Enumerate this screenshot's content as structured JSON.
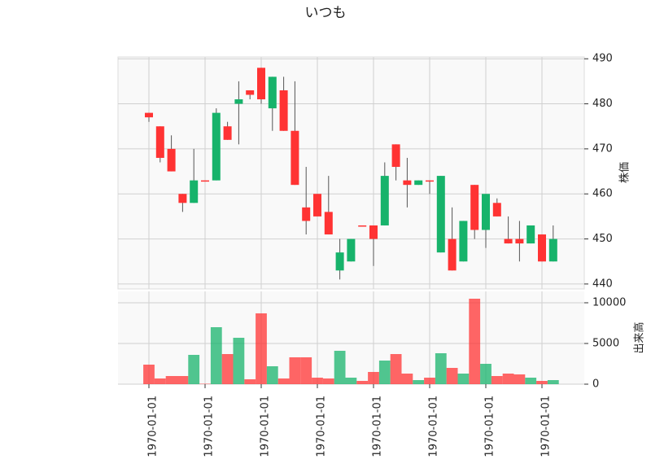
{
  "chart_data": {
    "type": "candlestick",
    "title": "いつも",
    "ylabel": "株価",
    "up_color": "#ff3333",
    "down_color": "#17b36b",
    "grid": true,
    "categories": [
      "1970-01-01",
      null,
      null,
      null,
      null,
      "1970-01-01",
      null,
      null,
      null,
      null,
      "1970-01-01",
      null,
      null,
      null,
      null,
      "1970-01-01",
      null,
      null,
      null,
      null,
      "1970-01-01",
      null,
      null,
      null,
      null,
      "1970-01-01",
      null,
      null,
      null,
      null,
      "1970-01-01",
      null,
      null,
      null,
      null,
      "1970-01-01",
      null
    ],
    "open": [
      477,
      468,
      465,
      458,
      463,
      463,
      478,
      472,
      481,
      482,
      481,
      486,
      474,
      462,
      454,
      455,
      451,
      447,
      450,
      453,
      450,
      464,
      466,
      462,
      463,
      463,
      464,
      443,
      454,
      452,
      460,
      455,
      449,
      449,
      453,
      445,
      450
    ],
    "high": [
      478,
      475,
      473,
      460,
      470,
      463,
      479,
      476,
      485,
      483,
      488,
      486,
      486,
      485,
      466,
      460,
      464,
      450,
      450,
      453,
      453,
      467,
      471,
      468,
      463,
      463,
      464,
      457,
      454,
      462,
      460,
      459,
      455,
      454,
      453,
      451,
      453
    ],
    "low": [
      476,
      467,
      465,
      456,
      458,
      463,
      463,
      472,
      471,
      481,
      480,
      474,
      474,
      462,
      451,
      455,
      451,
      441,
      445,
      453,
      444,
      453,
      463,
      457,
      462,
      460,
      447,
      443,
      445,
      450,
      448,
      455,
      449,
      445,
      449,
      445,
      445
    ],
    "close": [
      478,
      475,
      470,
      460,
      458,
      463,
      463,
      475,
      480,
      483,
      488,
      479,
      483,
      474,
      457,
      460,
      456,
      443,
      445,
      453,
      453,
      453,
      471,
      463,
      462,
      463,
      447,
      450,
      445,
      462,
      452,
      458,
      450,
      450,
      449,
      451,
      445
    ],
    "ylim": [
      438.9,
      490.4
    ],
    "yticks": [
      440,
      450,
      460,
      470,
      480,
      490
    ],
    "volume": {
      "label": "出来高",
      "values": [
        2400,
        700,
        1000,
        1000,
        3600,
        50,
        7000,
        3700,
        5700,
        600,
        8700,
        2200,
        700,
        3300,
        3300,
        800,
        700,
        4100,
        800,
        400,
        1500,
        2900,
        3700,
        1300,
        500,
        800,
        3800,
        2000,
        1300,
        10500,
        2500,
        1000,
        1300,
        1200,
        800,
        400,
        500
      ],
      "ylim": [
        0,
        11400
      ],
      "yticks": [
        0,
        5000,
        10000
      ]
    }
  }
}
